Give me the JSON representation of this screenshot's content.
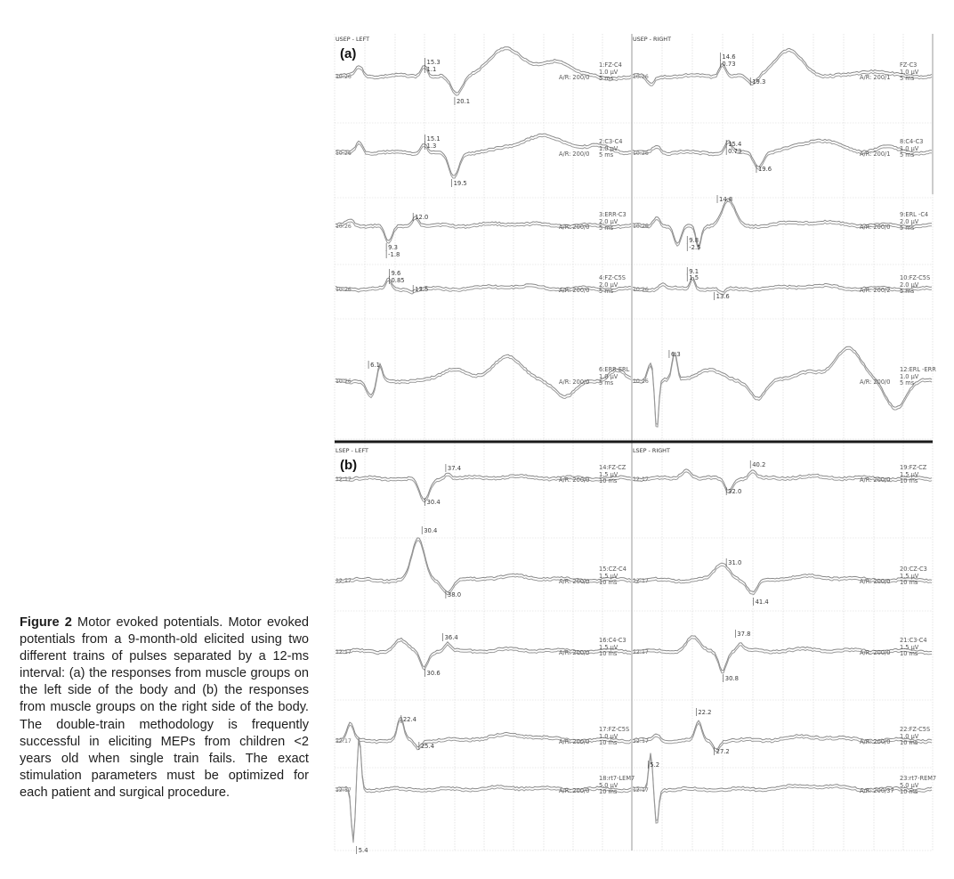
{
  "caption": {
    "label": "Figure 2",
    "text": " Motor evoked potentials. Motor evoked potentials from a 9-month-old elicited using two different trains of pulses separated by a 12-ms interval: (a) the responses from muscle groups on the left side of the body and (b) the responses from muscle groups on the right side of the body. The double-train methodology is frequently successful in eliciting MEPs from children <2 years old when single train fails. The exact stimulation parameters must be optimized for each patient and surgical procedure."
  },
  "panels": [
    {
      "letter": "(a)",
      "sections": [
        {
          "title": "USEP - LEFT",
          "traces": [
            {
              "time": "10:26",
              "channel": "1:FZ-C4",
              "gain": "1.0 µV",
              "sweep": "5 ms",
              "ar": "A/R: 200/0",
              "markers": [
                "15.3",
                "1.1",
                "20.1"
              ]
            },
            {
              "time": "10:26",
              "channel": "2:C3-C4",
              "gain": "1.0 µV",
              "sweep": "5 ms",
              "ar": "A/R: 200/0",
              "markers": [
                "15.1",
                "1.3",
                "19.5"
              ]
            },
            {
              "time": "10:26",
              "channel": "3:ERR-C3",
              "gain": "2.0 µV",
              "sweep": "5 ms",
              "ar": "A/R: 200/0",
              "markers": [
                "12.0",
                "9.3",
                "-1.8"
              ]
            },
            {
              "time": "10:26",
              "channel": "4:FZ-C5S",
              "gain": "2.0 µV",
              "sweep": "5 ms",
              "ar": "A/R: 200/0",
              "markers": [
                "9.6",
                "0.85",
                "13.5"
              ]
            },
            {
              "time": "10:26",
              "channel": "6:ERR-ERL",
              "gain": "1.0 µV",
              "sweep": "5 ms",
              "ar": "A/R: 200/0",
              "markers": [
                "6.1"
              ]
            }
          ]
        },
        {
          "title": "USEP - RIGHT",
          "traces": [
            {
              "time": "10:26",
              "channel": "FZ-C3",
              "gain": "1.0 µV",
              "sweep": "5 ms",
              "ar": "A/R: 200/1",
              "markers": [
                "14.6",
                "0.73",
                "19.3"
              ]
            },
            {
              "time": "10:26",
              "channel": "8:C4-C3",
              "gain": "1.0 µV",
              "sweep": "5 ms",
              "ar": "A/R: 200/1",
              "markers": [
                "15.4",
                "0.73",
                "19.6"
              ]
            },
            {
              "time": "10:26",
              "channel": "9:ERL -C4",
              "gain": "2.0 µV",
              "sweep": "5 ms",
              "ar": "A/R: 200/0",
              "markers": [
                "14.8",
                "9.8",
                "-2.5"
              ]
            },
            {
              "time": "10:26",
              "channel": "10:FZ-C5S",
              "gain": "2.0 µV",
              "sweep": "5 ms",
              "ar": "A/R: 200/2",
              "markers": [
                "9.1",
                "1.5",
                "13.6"
              ]
            },
            {
              "time": "10:26",
              "channel": "12:ERL -ERR",
              "gain": "1.0 µV",
              "sweep": "5 ms",
              "ar": "A/R: 200/0",
              "markers": [
                "6.3"
              ]
            }
          ]
        }
      ]
    },
    {
      "letter": "(b)",
      "sections": [
        {
          "title": "LSEP - LEFT",
          "traces": [
            {
              "time": "12:17",
              "channel": "14:FZ-CZ",
              "gain": "1.5 µV",
              "sweep": "10 ms",
              "ar": "A/R: 200/0",
              "markers": [
                "37.4",
                "30.4"
              ]
            },
            {
              "time": "12:17",
              "channel": "15:CZ-C4",
              "gain": "1.5 µV",
              "sweep": "10 ms",
              "ar": "A/R: 200/0",
              "markers": [
                "30.4",
                "38.0"
              ]
            },
            {
              "time": "12:17",
              "channel": "16:C4-C3",
              "gain": "1.5 µV",
              "sweep": "10 ms",
              "ar": "A/R: 200/0",
              "markers": [
                "36.4",
                "30.6"
              ]
            },
            {
              "time": "12:17",
              "channel": "17:FZ-C5S",
              "gain": "1.0 µV",
              "sweep": "10 ms",
              "ar": "A/R: 200/0",
              "markers": [
                "22.4",
                "25.4"
              ]
            },
            {
              "time": "12:17",
              "channel": "18:rt7-LEM7",
              "gain": "5.0 µV",
              "sweep": "10 ms",
              "ar": "A/R: 200/0",
              "markers": [
                "5.4"
              ]
            }
          ]
        },
        {
          "title": "LSEP - RIGHT",
          "traces": [
            {
              "time": "12:17",
              "channel": "19:FZ-CZ",
              "gain": "1.5 µV",
              "sweep": "10 ms",
              "ar": "A/R: 200/0",
              "markers": [
                "40.2",
                "32.0"
              ]
            },
            {
              "time": "12:17",
              "channel": "20:CZ-C3",
              "gain": "1.5 µV",
              "sweep": "10 ms",
              "ar": "A/R: 200/0",
              "markers": [
                "31.0",
                "41.4"
              ]
            },
            {
              "time": "12:17",
              "channel": "21:C3-C4",
              "gain": "1.5 µV",
              "sweep": "10 ms",
              "ar": "A/R: 200/0",
              "markers": [
                "37.8",
                "30.8"
              ]
            },
            {
              "time": "12:17",
              "channel": "22:FZ-C5S",
              "gain": "1.0 µV",
              "sweep": "10 ms",
              "ar": "A/R: 200/0",
              "markers": [
                "22.2",
                "27.2"
              ]
            },
            {
              "time": "12:17",
              "channel": "23:rt7-REM7",
              "gain": "5.0 µV",
              "sweep": "10 ms",
              "ar": "A/R: 200/37",
              "markers": [
                "5.2"
              ]
            }
          ]
        }
      ]
    }
  ]
}
